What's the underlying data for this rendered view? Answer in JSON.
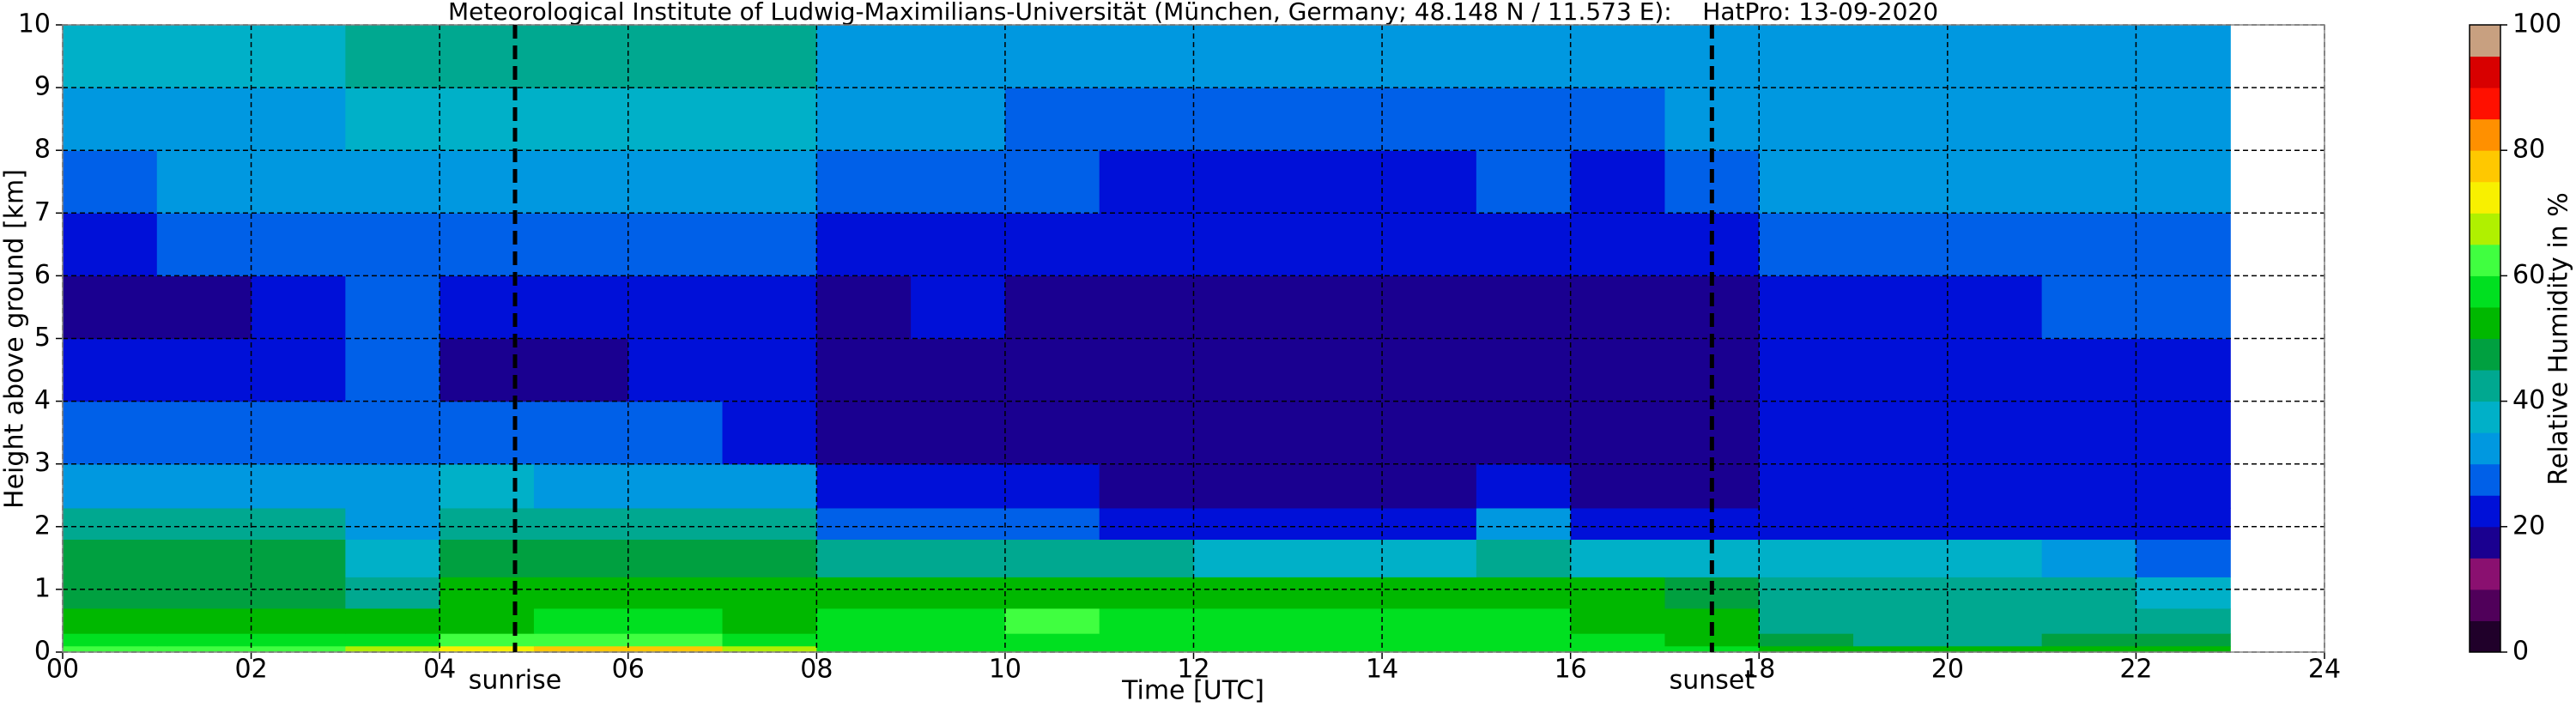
{
  "chart_data": {
    "type": "heatmap",
    "title": "Meteorological Institute of Ludwig-Maximilians-Universität (München, Germany; 48.148 N / 11.573 E):    HatPro: 13-09-2020",
    "x_label": "Time [UTC]",
    "y_label": "Height above ground [km]",
    "colorbar_label": "Relative Humidity in %",
    "xlim": [
      0,
      24
    ],
    "ylim": [
      0,
      10
    ],
    "xticks": [
      {
        "value": 0,
        "label": "00"
      },
      {
        "value": 2,
        "label": "02"
      },
      {
        "value": 4,
        "label": "04"
      },
      {
        "value": 6,
        "label": "06"
      },
      {
        "value": 8,
        "label": "08"
      },
      10,
      12,
      14,
      16,
      18,
      20,
      22,
      24
    ],
    "yticks": [
      0,
      1,
      2,
      3,
      4,
      5,
      6,
      7,
      8,
      9,
      10
    ],
    "grid": true,
    "x": [
      0,
      1,
      2,
      3,
      4,
      5,
      6,
      7,
      8,
      9,
      10,
      11,
      12,
      13,
      14,
      15,
      16,
      17,
      18,
      19,
      20,
      21,
      22,
      23
    ],
    "y": [
      0,
      0.1,
      0.3,
      0.7,
      1.2,
      1.8,
      2.3,
      3,
      4,
      5,
      6,
      7,
      8,
      9,
      10
    ],
    "z": [
      [
        62,
        63,
        64,
        66,
        72,
        78,
        76,
        68,
        58,
        56,
        56,
        56,
        56,
        56,
        56,
        56,
        56,
        55,
        52,
        52,
        52,
        52,
        52
      ],
      [
        56,
        56,
        57,
        57,
        60,
        62,
        62,
        58,
        55,
        56,
        57,
        57,
        56,
        56,
        56,
        56,
        55,
        52,
        45,
        44,
        44,
        45,
        46
      ],
      [
        52,
        53,
        53,
        50,
        54,
        56,
        56,
        54,
        57,
        58,
        60,
        58,
        57,
        57,
        55,
        55,
        54,
        53,
        42,
        42,
        42,
        42,
        42
      ],
      [
        48,
        48,
        48,
        42,
        50,
        52,
        52,
        50,
        50,
        51,
        52,
        51,
        50,
        50,
        50,
        52,
        50,
        49,
        40,
        40,
        40,
        40,
        38
      ],
      [
        47,
        47,
        46,
        36,
        48,
        48,
        48,
        46,
        40,
        41,
        42,
        40,
        38,
        38,
        37,
        42,
        37,
        36,
        36,
        36,
        35,
        32,
        28
      ],
      [
        42,
        42,
        40,
        30,
        42,
        42,
        42,
        40,
        28,
        28,
        26,
        24,
        24,
        24,
        24,
        30,
        24,
        24,
        24,
        24,
        24,
        22,
        20
      ],
      [
        34,
        34,
        33,
        30,
        35,
        34,
        33,
        30,
        20,
        20,
        20,
        16,
        16,
        16,
        16,
        22,
        17,
        17,
        22,
        22,
        22,
        22,
        22
      ],
      [
        27,
        27,
        26,
        28,
        26,
        26,
        26,
        24,
        18,
        18,
        18,
        16,
        15,
        15,
        15,
        18,
        16,
        16,
        21,
        21,
        22,
        22,
        22
      ],
      [
        20,
        20,
        20,
        26,
        19,
        19,
        20,
        21,
        18,
        18,
        18,
        17,
        17,
        17,
        17,
        18,
        17,
        17,
        22,
        22,
        23,
        23,
        23
      ],
      [
        19,
        19,
        20,
        26,
        20,
        21,
        22,
        22,
        19,
        20,
        19,
        18,
        18,
        18,
        18,
        19,
        18,
        18,
        24,
        24,
        24,
        25,
        25
      ],
      [
        24,
        25,
        26,
        28,
        26,
        26,
        27,
        26,
        22,
        24,
        22,
        20,
        20,
        20,
        20,
        22,
        20,
        21,
        28,
        28,
        28,
        28,
        28
      ],
      [
        29,
        30,
        30,
        32,
        31,
        31,
        32,
        32,
        26,
        28,
        25,
        24,
        24,
        24,
        24,
        25,
        24,
        26,
        30,
        30,
        30,
        30,
        30
      ],
      [
        33,
        34,
        34,
        35,
        35,
        35,
        36,
        36,
        30,
        31,
        29,
        28,
        28,
        28,
        28,
        28,
        28,
        30,
        32,
        32,
        32,
        32,
        32
      ],
      [
        38,
        38,
        39,
        40,
        40,
        42,
        42,
        40,
        34,
        34,
        32,
        31,
        31,
        31,
        31,
        31,
        32,
        32,
        33,
        33,
        33,
        33,
        33
      ]
    ],
    "clim": [
      0,
      100
    ],
    "cticks": [
      0,
      20,
      40,
      60,
      80,
      100
    ],
    "colormap": [
      {
        "value": 0,
        "color": "#20002a"
      },
      {
        "value": 5,
        "color": "#50005a"
      },
      {
        "value": 10,
        "color": "#8a1070"
      },
      {
        "value": 15,
        "color": "#1a0090"
      },
      {
        "value": 20,
        "color": "#0010d8"
      },
      {
        "value": 25,
        "color": "#0060e8"
      },
      {
        "value": 30,
        "color": "#0098e0"
      },
      {
        "value": 35,
        "color": "#00b0c8"
      },
      {
        "value": 40,
        "color": "#00a890"
      },
      {
        "value": 45,
        "color": "#00a040"
      },
      {
        "value": 50,
        "color": "#00b800"
      },
      {
        "value": 55,
        "color": "#00e020"
      },
      {
        "value": 60,
        "color": "#40ff40"
      },
      {
        "value": 65,
        "color": "#b0f000"
      },
      {
        "value": 70,
        "color": "#f8f000"
      },
      {
        "value": 75,
        "color": "#ffc800"
      },
      {
        "value": 80,
        "color": "#ff9000"
      },
      {
        "value": 85,
        "color": "#ff1000"
      },
      {
        "value": 90,
        "color": "#d80000"
      },
      {
        "value": 95,
        "color": "#c8a080"
      }
    ],
    "annotations": [
      {
        "x": 4.8,
        "label": "sunrise"
      },
      {
        "x": 17.5,
        "label": "sunset"
      }
    ]
  }
}
